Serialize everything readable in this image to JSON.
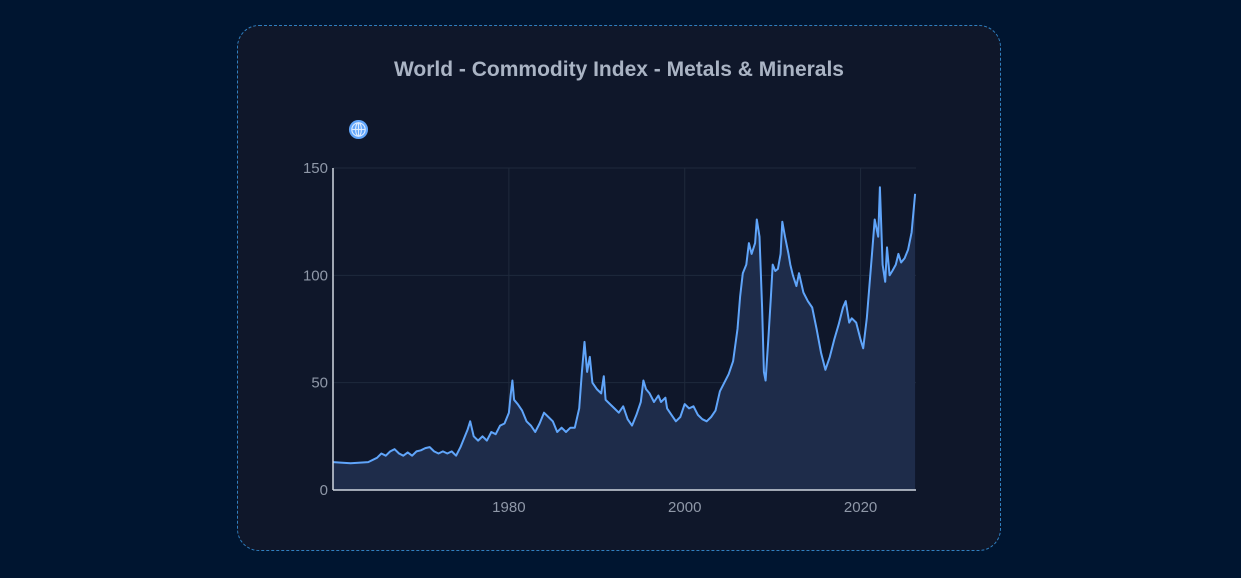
{
  "chart_data": {
    "type": "area",
    "title": "World - Commodity Index - Metals & Minerals",
    "xlabel": "",
    "ylabel": "",
    "xlim": [
      1960,
      2026.3
    ],
    "ylim": [
      0,
      150
    ],
    "x_ticks": [
      "1980",
      "2000",
      "2020"
    ],
    "y_ticks": [
      "0",
      "50",
      "100",
      "150"
    ],
    "grid": true,
    "series": [
      {
        "points": [
          [
            1960.0,
            13
          ],
          [
            1962.0,
            12.5
          ],
          [
            1964.0,
            13
          ],
          [
            1965.0,
            15
          ],
          [
            1965.5,
            17
          ],
          [
            1966.0,
            16
          ],
          [
            1966.5,
            18
          ],
          [
            1967.0,
            19
          ],
          [
            1967.5,
            17
          ],
          [
            1968.0,
            16
          ],
          [
            1968.5,
            17.5
          ],
          [
            1969.0,
            16
          ],
          [
            1969.5,
            18
          ],
          [
            1970.0,
            18.5
          ],
          [
            1970.5,
            19.5
          ],
          [
            1971.0,
            20
          ],
          [
            1971.5,
            18
          ],
          [
            1972.0,
            17
          ],
          [
            1972.5,
            18
          ],
          [
            1973.0,
            17
          ],
          [
            1973.5,
            18
          ],
          [
            1974.0,
            16
          ],
          [
            1974.5,
            20
          ],
          [
            1975.0,
            25
          ],
          [
            1975.3,
            28
          ],
          [
            1975.6,
            32
          ],
          [
            1976.0,
            25
          ],
          [
            1976.5,
            23
          ],
          [
            1977.0,
            25
          ],
          [
            1977.5,
            23
          ],
          [
            1978.0,
            27
          ],
          [
            1978.5,
            26
          ],
          [
            1979.0,
            30
          ],
          [
            1979.5,
            31
          ],
          [
            1980.0,
            36
          ],
          [
            1980.2,
            44
          ],
          [
            1980.4,
            51
          ],
          [
            1980.6,
            42
          ],
          [
            1981.0,
            40
          ],
          [
            1981.5,
            37
          ],
          [
            1982.0,
            32
          ],
          [
            1982.5,
            30
          ],
          [
            1983.0,
            27
          ],
          [
            1983.5,
            31
          ],
          [
            1984.0,
            36
          ],
          [
            1984.5,
            34
          ],
          [
            1985.0,
            32
          ],
          [
            1985.5,
            27
          ],
          [
            1986.0,
            29
          ],
          [
            1986.5,
            27
          ],
          [
            1987.0,
            29
          ],
          [
            1987.5,
            29
          ],
          [
            1988.0,
            38
          ],
          [
            1988.3,
            55
          ],
          [
            1988.6,
            69
          ],
          [
            1988.9,
            55
          ],
          [
            1989.2,
            62
          ],
          [
            1989.5,
            50
          ],
          [
            1990.0,
            47
          ],
          [
            1990.5,
            45
          ],
          [
            1990.8,
            53
          ],
          [
            1991.0,
            42
          ],
          [
            1991.5,
            40
          ],
          [
            1992.0,
            38
          ],
          [
            1992.5,
            36
          ],
          [
            1993.0,
            39
          ],
          [
            1993.5,
            33
          ],
          [
            1994.0,
            30
          ],
          [
            1994.5,
            35
          ],
          [
            1995.0,
            41
          ],
          [
            1995.3,
            51
          ],
          [
            1995.6,
            47
          ],
          [
            1996.0,
            45
          ],
          [
            1996.5,
            41
          ],
          [
            1997.0,
            44
          ],
          [
            1997.3,
            41
          ],
          [
            1997.8,
            43
          ],
          [
            1998.0,
            38
          ],
          [
            1998.5,
            35
          ],
          [
            1999.0,
            32
          ],
          [
            1999.5,
            34
          ],
          [
            2000.0,
            40
          ],
          [
            2000.5,
            38
          ],
          [
            2001.0,
            39
          ],
          [
            2001.5,
            35
          ],
          [
            2002.0,
            33
          ],
          [
            2002.5,
            32
          ],
          [
            2003.0,
            34
          ],
          [
            2003.5,
            37
          ],
          [
            2004.0,
            46
          ],
          [
            2004.5,
            50
          ],
          [
            2005.0,
            54
          ],
          [
            2005.5,
            60
          ],
          [
            2006.0,
            75
          ],
          [
            2006.3,
            90
          ],
          [
            2006.6,
            101
          ],
          [
            2007.0,
            105
          ],
          [
            2007.3,
            115
          ],
          [
            2007.6,
            110
          ],
          [
            2008.0,
            115
          ],
          [
            2008.2,
            126
          ],
          [
            2008.5,
            118
          ],
          [
            2008.8,
            85
          ],
          [
            2009.0,
            55
          ],
          [
            2009.2,
            51
          ],
          [
            2009.5,
            70
          ],
          [
            2009.8,
            90
          ],
          [
            2010.0,
            105
          ],
          [
            2010.3,
            102
          ],
          [
            2010.6,
            103
          ],
          [
            2010.9,
            110
          ],
          [
            2011.1,
            125
          ],
          [
            2011.4,
            118
          ],
          [
            2011.8,
            110
          ],
          [
            2012.0,
            105
          ],
          [
            2012.3,
            100
          ],
          [
            2012.7,
            95
          ],
          [
            2013.0,
            101
          ],
          [
            2013.5,
            92
          ],
          [
            2014.0,
            88
          ],
          [
            2014.5,
            85
          ],
          [
            2015.0,
            75
          ],
          [
            2015.5,
            64
          ],
          [
            2016.0,
            56
          ],
          [
            2016.5,
            62
          ],
          [
            2017.0,
            70
          ],
          [
            2017.5,
            77
          ],
          [
            2018.0,
            85
          ],
          [
            2018.3,
            88
          ],
          [
            2018.7,
            78
          ],
          [
            2019.0,
            80
          ],
          [
            2019.5,
            78
          ],
          [
            2020.0,
            70
          ],
          [
            2020.3,
            66
          ],
          [
            2020.7,
            80
          ],
          [
            2021.0,
            95
          ],
          [
            2021.3,
            110
          ],
          [
            2021.6,
            126
          ],
          [
            2022.0,
            118
          ],
          [
            2022.2,
            141
          ],
          [
            2022.5,
            105
          ],
          [
            2022.8,
            97
          ],
          [
            2023.0,
            113
          ],
          [
            2023.3,
            100
          ],
          [
            2023.6,
            102
          ],
          [
            2024.0,
            105
          ],
          [
            2024.3,
            110
          ],
          [
            2024.6,
            106
          ],
          [
            2025.0,
            108
          ],
          [
            2025.4,
            112
          ],
          [
            2025.8,
            120
          ],
          [
            2026.2,
            138
          ]
        ]
      }
    ],
    "colors": {
      "line": "#60a5fa",
      "fill": "#1e2c4a",
      "grid": "#1f2a3c",
      "axis": "#cfd6e0"
    }
  },
  "icon": "globe-icon"
}
